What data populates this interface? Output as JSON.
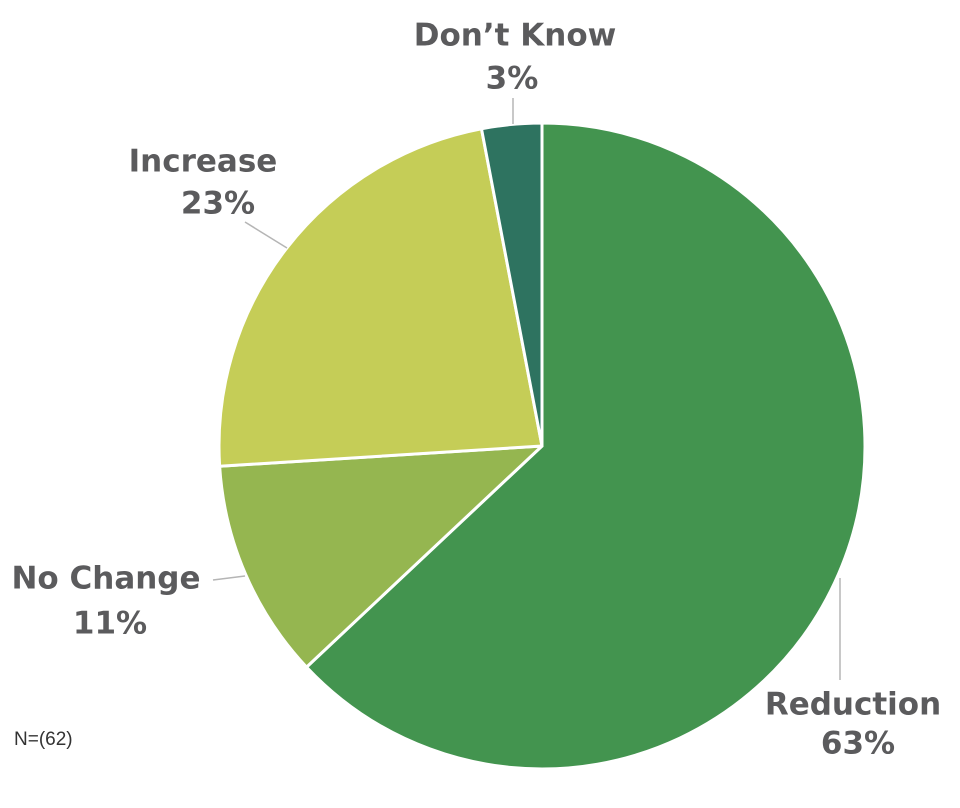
{
  "chart_data": {
    "type": "pie",
    "categories": [
      "Reduction",
      "No Change",
      "Increase",
      "Don’t Know"
    ],
    "values": [
      63,
      11,
      23,
      3
    ],
    "value_labels": [
      "63%",
      "11%",
      "23%",
      "3%"
    ],
    "colors": [
      "#43944f",
      "#95b650",
      "#c5cd57",
      "#2e7360"
    ],
    "note": "N=(62)"
  }
}
